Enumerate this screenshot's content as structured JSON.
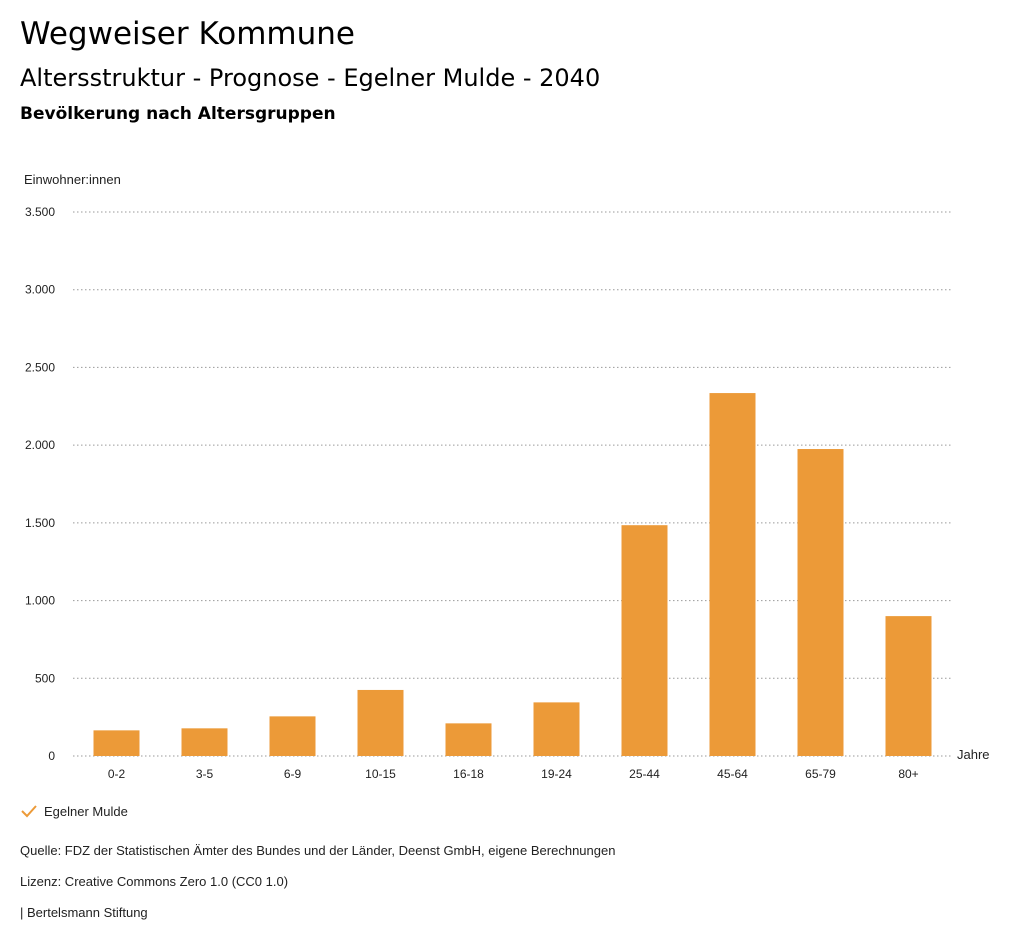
{
  "header": {
    "title": "Wegweiser Kommune",
    "subtitle": "Altersstruktur - Prognose - Egelner Mulde - 2040",
    "subsubtitle": "Bevölkerung nach Altersgruppen"
  },
  "chart_data": {
    "type": "bar",
    "ylabel": "Einwohner:innen",
    "xlabel": "Jahre",
    "categories": [
      "0-2",
      "3-5",
      "6-9",
      "10-15",
      "16-18",
      "19-24",
      "25-44",
      "45-64",
      "65-79",
      "80+"
    ],
    "series": [
      {
        "name": "Egelner Mulde",
        "values": [
          165,
          178,
          255,
          425,
          210,
          345,
          1485,
          2335,
          1975,
          900
        ],
        "color": "#ec9a38"
      }
    ],
    "ylim": [
      0,
      3500
    ],
    "yticks": [
      0,
      500,
      1000,
      1500,
      2000,
      2500,
      3000,
      3500
    ],
    "ytick_labels": [
      "0",
      "500",
      "1.000",
      "1.500",
      "2.000",
      "2.500",
      "3.000",
      "3.500"
    ],
    "grid": true,
    "legend_position": "bottom-left"
  },
  "legend": {
    "label": "Egelner Mulde",
    "icon": "check-icon",
    "color": "#ec9a38"
  },
  "footer": {
    "source": "Quelle: FDZ der Statistischen Ämter des Bundes und der Länder, Deenst GmbH, eigene Berechnungen",
    "license": "Lizenz: Creative Commons Zero 1.0 (CC0 1.0)",
    "brand": "| Bertelsmann Stiftung"
  }
}
